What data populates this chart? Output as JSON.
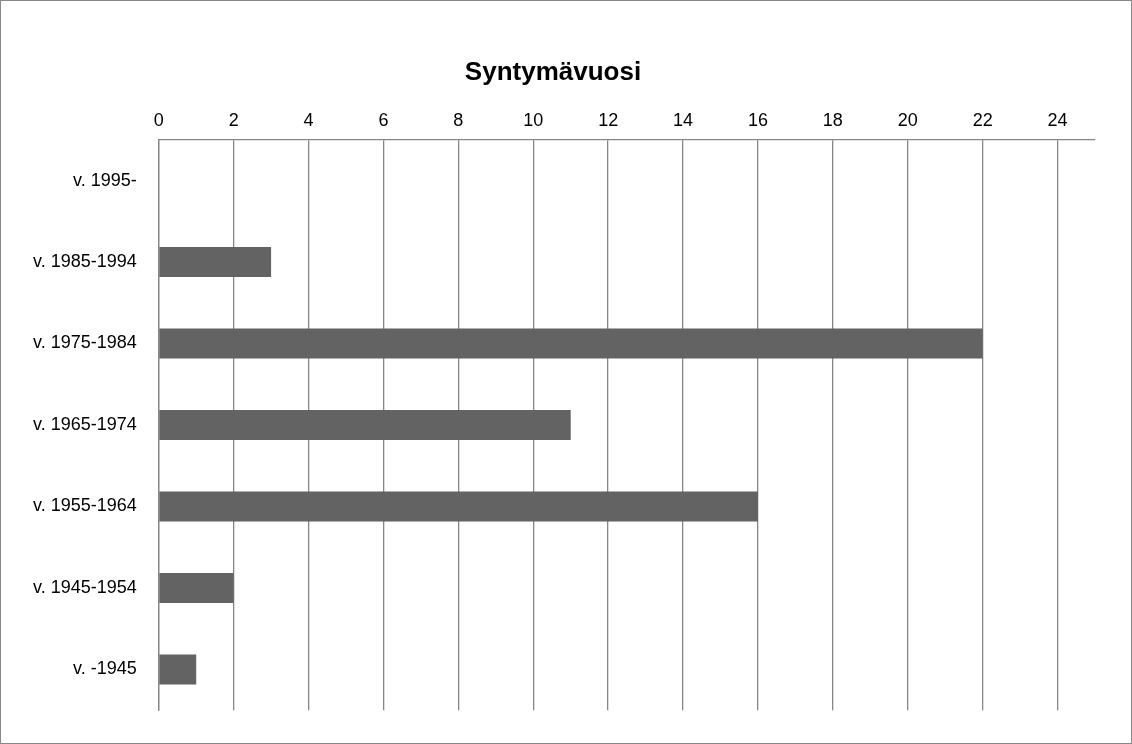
{
  "chart_data": {
    "type": "bar",
    "orientation": "horizontal",
    "title": "Syntymävuosi",
    "categories": [
      "v. 1995-",
      "v. 1985-1994",
      "v. 1975-1984",
      "v. 1965-1974",
      "v. 1955-1964",
      "v. 1945-1954",
      "v. -1945"
    ],
    "values": [
      0,
      3,
      22,
      11,
      16,
      2,
      1
    ],
    "color": "#636363",
    "xlim": [
      0,
      25
    ],
    "xticks": [
      0,
      2,
      4,
      6,
      8,
      10,
      12,
      14,
      16,
      18,
      20,
      22,
      24
    ],
    "grid": "x"
  }
}
